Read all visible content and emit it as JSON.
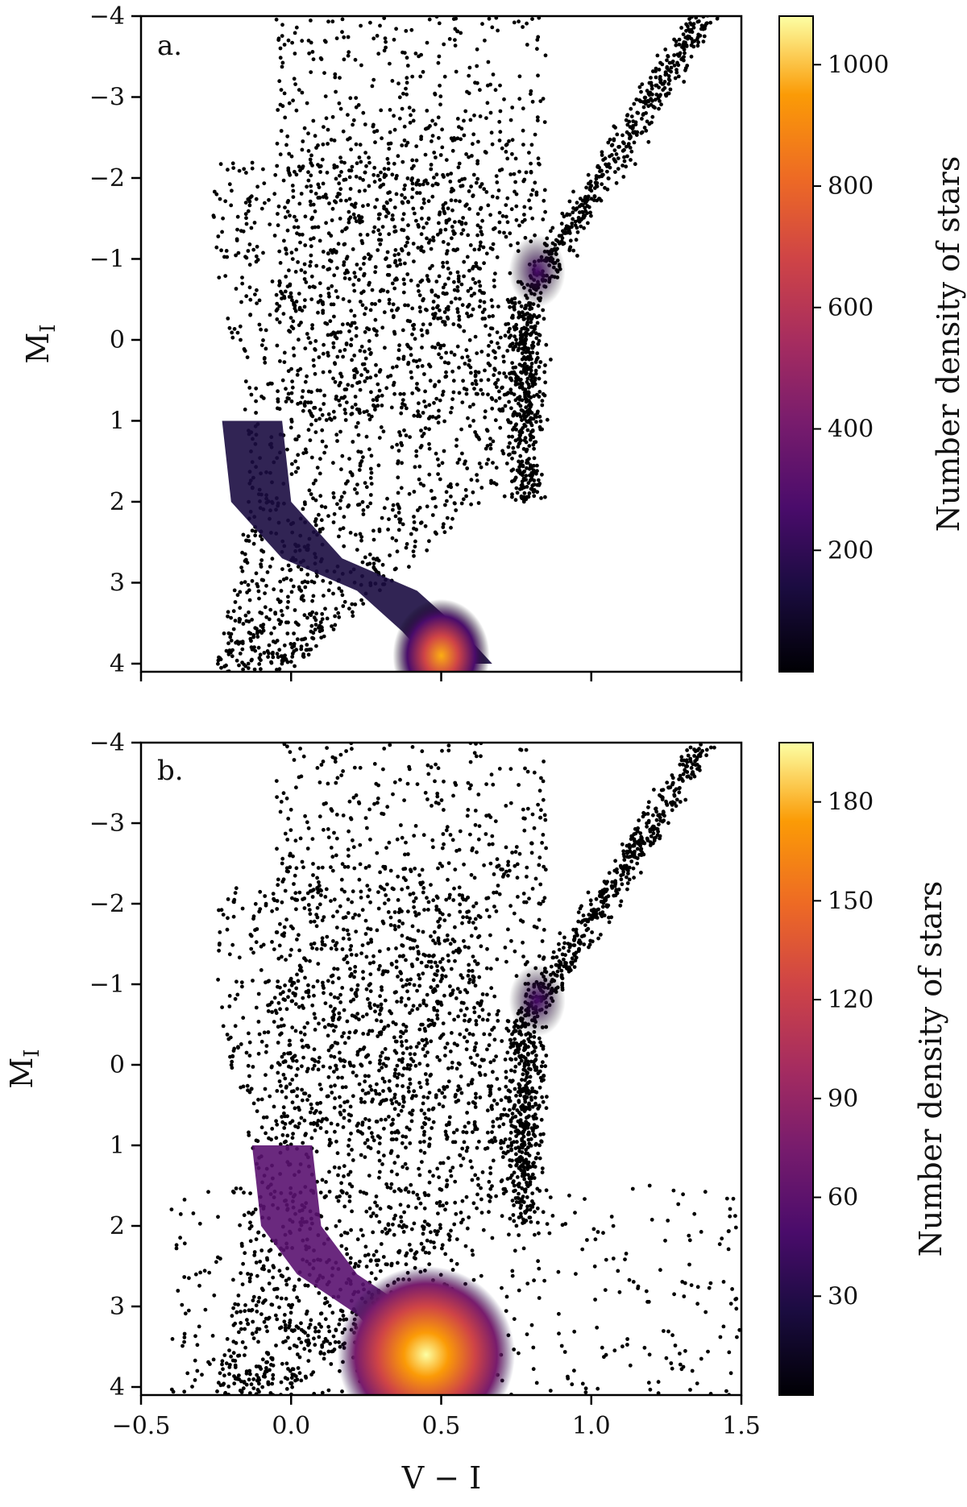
{
  "chart_data": [
    {
      "type": "heatmap",
      "panel_label": "a.",
      "xlabel": "",
      "ylabel_main": "M",
      "ylabel_sub": "I",
      "xlim": [
        -0.5,
        1.5
      ],
      "ylim": [
        -4,
        4.1
      ],
      "y_inverted": true,
      "xticks": [
        -0.5,
        0.0,
        0.5,
        1.0,
        1.5
      ],
      "xtick_labels_shown": false,
      "yticks": [
        -4,
        -3,
        -2,
        -1,
        0,
        1,
        2,
        3,
        4
      ],
      "ytick_labels": [
        "−4",
        "−3",
        "−2",
        "−1",
        "0",
        "1",
        "2",
        "3",
        "4"
      ],
      "colorbar": {
        "label": "Number density of stars",
        "range": [
          0,
          1080
        ],
        "ticks": [
          200,
          400,
          600,
          800,
          1000
        ],
        "tick_labels": [
          "200",
          "400",
          "600",
          "800",
          "1000"
        ],
        "colormap": "inferno"
      },
      "features": {
        "main_sequence_ridge": [
          [
            -0.15,
            1.0
          ],
          [
            -0.12,
            2.0
          ],
          [
            0.05,
            2.7
          ],
          [
            0.3,
            3.1
          ],
          [
            0.45,
            3.6
          ],
          [
            0.55,
            4.0
          ]
        ],
        "main_sequence_peak": {
          "x": 0.5,
          "y": 3.9,
          "density": 1000
        },
        "red_clump": {
          "x": 0.82,
          "y": -0.85,
          "density": 120
        },
        "red_giant_branch": [
          [
            0.75,
            1.5
          ],
          [
            0.8,
            0.0
          ],
          [
            0.85,
            -1.0
          ],
          [
            1.0,
            -2.5
          ],
          [
            1.2,
            -3.6
          ],
          [
            1.35,
            -4.0
          ]
        ],
        "turnoff_edge": [
          [
            -0.15,
            -2.0
          ],
          [
            -0.2,
            0.0
          ],
          [
            -0.15,
            2.3
          ],
          [
            0.0,
            3.0
          ],
          [
            0.2,
            3.3
          ],
          [
            0.4,
            3.8
          ],
          [
            0.6,
            4.1
          ]
        ]
      }
    },
    {
      "type": "heatmap",
      "panel_label": "b.",
      "xlabel": "V − I",
      "ylabel_main": "M",
      "ylabel_sub": "I",
      "xlim": [
        -0.5,
        1.5
      ],
      "ylim": [
        -4,
        4.1
      ],
      "y_inverted": true,
      "xticks": [
        -0.5,
        0.0,
        0.5,
        1.0,
        1.5
      ],
      "xtick_labels": [
        "−0.5",
        "0.0",
        "0.5",
        "1.0",
        "1.5"
      ],
      "yticks": [
        -4,
        -3,
        -2,
        -1,
        0,
        1,
        2,
        3,
        4
      ],
      "ytick_labels": [
        "−4",
        "−3",
        "−2",
        "−1",
        "0",
        "1",
        "2",
        "3",
        "4"
      ],
      "colorbar": {
        "label": "Number density of stars",
        "range": [
          0,
          198
        ],
        "ticks": [
          30,
          60,
          90,
          120,
          150,
          180
        ],
        "tick_labels": [
          "30",
          "60",
          "90",
          "120",
          "150",
          "180"
        ],
        "colormap": "inferno"
      },
      "features": {
        "main_sequence_ridge": [
          [
            -0.05,
            1.0
          ],
          [
            -0.02,
            2.0
          ],
          [
            0.1,
            2.6
          ],
          [
            0.3,
            3.1
          ],
          [
            0.42,
            3.6
          ],
          [
            0.5,
            4.0
          ]
        ],
        "main_sequence_peak": {
          "x": 0.45,
          "y": 3.6,
          "density": 185
        },
        "red_clump": {
          "x": 0.82,
          "y": -0.8,
          "density": 60
        },
        "red_giant_branch": [
          [
            0.75,
            1.5
          ],
          [
            0.8,
            0.0
          ],
          [
            0.85,
            -1.0
          ],
          [
            1.0,
            -2.5
          ],
          [
            1.2,
            -3.6
          ],
          [
            1.35,
            -4.0
          ]
        ]
      }
    }
  ]
}
